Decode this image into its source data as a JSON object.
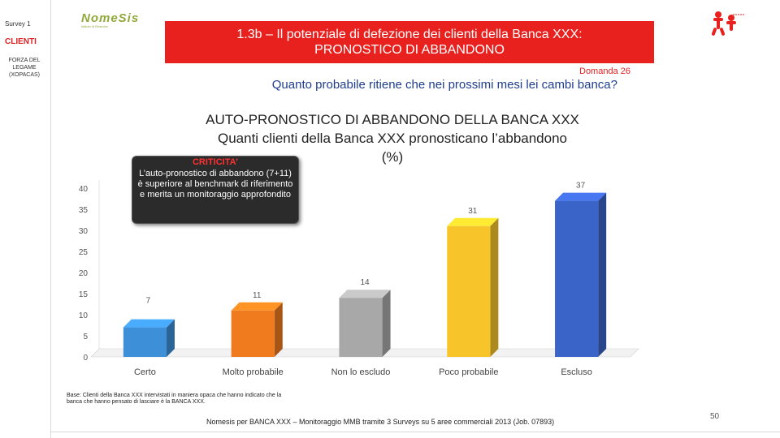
{
  "sidebar": {
    "survey": "Survey 1",
    "section": "CLIENTI",
    "note": "FORZA DEL LEGAME (xOpacas)"
  },
  "logo": {
    "text": "NomeSis",
    "subtitle": "Istituto di Ricerche"
  },
  "header": {
    "title_line1": "1.3b – Il potenziale di defezione dei clienti della Banca XXX:",
    "title_line2": "PRONOSTICO DI ABBANDONO",
    "domanda": "Domanda 26",
    "question": "Quanto probabile ritiene che nei prossimi mesi lei cambi banca?"
  },
  "callout": {
    "title": "CRITICITA’",
    "text": "L’auto-pronostico di abbandono (7+11) è superiore al benchmark di riferimento e merita un monitoraggio approfondito"
  },
  "chart_data": {
    "type": "bar",
    "title_line1": "AUTO-PRONOSTICO DI ABBANDONO DELLA BANCA XXX",
    "title_line2": "Quanti clienti della Banca XXX pronosticano l’abbandono",
    "title_line3": "(%)",
    "categories": [
      "Certo",
      "Molto probabile",
      "Non lo escludo",
      "Poco probabile",
      "Escluso"
    ],
    "values": [
      7,
      11,
      14,
      31,
      37
    ],
    "colors": [
      "#3d8fd8",
      "#f07b1f",
      "#a8a8a8",
      "#f7c52a",
      "#3b64c9"
    ],
    "ylim": [
      0,
      40
    ],
    "yticks": [
      0,
      5,
      10,
      15,
      20,
      25,
      30,
      35,
      40
    ],
    "grid": false,
    "bar_style": "3d"
  },
  "footer": {
    "base": "Base: Clienti della Banca XXX intervistati in maniera opaca che hanno indicato che la banca che hanno pensato di lasciare è la BANCA XXX.",
    "source": "Nomesis per BANCA XXX – Monitoraggio MMB tramite 3 Surveys su 5 aree commerciali 2013 (Job. 07893)",
    "page": "50"
  },
  "colors": {
    "title_bg": "#e8201e",
    "accent_red": "#e02020",
    "question_blue": "#1f3d8f"
  }
}
